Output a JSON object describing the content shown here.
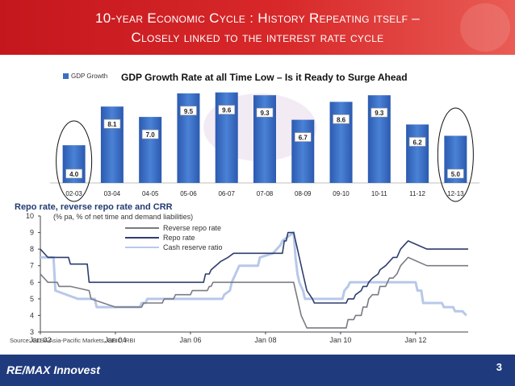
{
  "header": {
    "line1": "10-year Economic Cycle : History Repeating itself –",
    "line2": "Closely linked to the interest rate cycle"
  },
  "footer": {
    "brand": "RE/MAX Innovest",
    "page": "3"
  },
  "colors": {
    "header_red": "#d8282a",
    "footer_blue": "#1f3b7e",
    "bar_blue": "#3a6fc4",
    "reverse_repo": "#7a7a84",
    "repo": "#2e3c6e",
    "crr": "#b7c8ea"
  },
  "chart_data": [
    {
      "type": "bar",
      "title": "GDP Growth Rate at all Time Low – Is it Ready to Surge Ahead",
      "legend": "GDP Growth",
      "legend_position": "top-left",
      "categories": [
        "02-03",
        "03-04",
        "04-05",
        "05-06",
        "06-07",
        "07-08",
        "08-09",
        "09-10",
        "10-11",
        "11-12",
        "12-13"
      ],
      "values": [
        4.0,
        8.1,
        7.0,
        9.5,
        9.6,
        9.3,
        6.7,
        8.6,
        9.3,
        6.2,
        5.0
      ],
      "labels": [
        "4.0",
        "8.1",
        "7.0",
        "9.5",
        "9.6",
        "9.3",
        "6.7",
        "8.6",
        "9.3",
        "6.2",
        "5.0"
      ],
      "ylim": [
        0,
        10
      ],
      "highlighted_categories": [
        "02-03",
        "12-13"
      ]
    },
    {
      "type": "line",
      "title": "Repo rate, reverse repo rate and CRR",
      "subtitle": "(% pa, % of net time and demand liabilities)",
      "source": "Source: CLSA Asia-Pacific Markets, CEIC, RBI",
      "x_ticks": [
        "Jan 02",
        "Jan 04",
        "Jan 06",
        "Jan 08",
        "Jan 10",
        "Jan 12"
      ],
      "x_tick_values": [
        2002,
        2004,
        2006,
        2008,
        2010,
        2012
      ],
      "xlim": [
        2002,
        2013.4
      ],
      "y_ticks": [
        3,
        4,
        5,
        6,
        7,
        8,
        9,
        10
      ],
      "ylim": [
        3,
        10
      ],
      "grid": false,
      "series": [
        {
          "name": "Reverse repo rate",
          "x": [
            2002.0,
            2002.2,
            2002.45,
            2002.5,
            2002.8,
            2003.3,
            2003.35,
            2004.0,
            2004.7,
            2004.75,
            2005.25,
            2005.3,
            2005.55,
            2005.6,
            2006.0,
            2006.05,
            2006.45,
            2006.5,
            2006.55,
            2006.6,
            2008.5,
            2008.75,
            2008.85,
            2008.95,
            2009.05,
            2009.1,
            2009.25,
            2009.3,
            2010.15,
            2010.2,
            2010.35,
            2010.4,
            2010.55,
            2010.6,
            2010.7,
            2010.75,
            2010.85,
            2011.0,
            2011.05,
            2011.2,
            2011.3,
            2011.4,
            2011.5,
            2011.6,
            2011.8,
            2012.3,
            2013.4
          ],
          "y": [
            6.5,
            6.0,
            6.0,
            5.75,
            5.75,
            5.5,
            5.0,
            4.5,
            4.5,
            4.75,
            4.75,
            5.0,
            5.0,
            5.25,
            5.25,
            5.5,
            5.5,
            5.75,
            5.75,
            6.0,
            6.0,
            6.0,
            5.0,
            4.0,
            3.5,
            3.25,
            3.25,
            3.25,
            3.25,
            3.75,
            3.75,
            4.0,
            4.0,
            4.5,
            4.5,
            5.0,
            5.25,
            5.25,
            5.75,
            5.75,
            6.25,
            6.25,
            6.5,
            7.0,
            7.5,
            7.0,
            7.0
          ]
        },
        {
          "name": "Repo rate",
          "x": [
            2002.0,
            2002.2,
            2002.75,
            2002.8,
            2003.25,
            2003.3,
            2006.35,
            2006.4,
            2006.5,
            2006.55,
            2006.8,
            2007.0,
            2007.15,
            2008.45,
            2008.5,
            2008.55,
            2008.6,
            2008.75,
            2008.85,
            2008.9,
            2009.0,
            2009.1,
            2009.25,
            2009.3,
            2010.15,
            2010.2,
            2010.35,
            2010.4,
            2010.55,
            2010.6,
            2010.7,
            2010.75,
            2010.85,
            2011.0,
            2011.05,
            2011.2,
            2011.3,
            2011.4,
            2011.5,
            2011.6,
            2011.8,
            2012.3,
            2013.4
          ],
          "y": [
            8.0,
            7.5,
            7.5,
            7.1,
            7.1,
            6.0,
            6.0,
            6.5,
            6.5,
            6.75,
            7.25,
            7.5,
            7.75,
            7.75,
            8.5,
            8.5,
            9.0,
            9.0,
            8.0,
            7.5,
            6.5,
            5.5,
            5.0,
            4.75,
            4.75,
            5.0,
            5.0,
            5.25,
            5.5,
            5.75,
            5.75,
            6.0,
            6.25,
            6.5,
            6.75,
            7.0,
            7.25,
            7.5,
            7.5,
            8.0,
            8.5,
            8.0,
            8.0
          ]
        },
        {
          "name": "Cash reserve ratio",
          "x": [
            2002.0,
            2002.35,
            2002.4,
            2003.0,
            2003.45,
            2003.5,
            2004.65,
            2004.7,
            2004.8,
            2004.85,
            2006.85,
            2006.9,
            2007.05,
            2007.1,
            2007.2,
            2007.3,
            2007.8,
            2007.85,
            2008.2,
            2008.3,
            2008.4,
            2008.45,
            2008.6,
            2008.75,
            2008.8,
            2008.85,
            2008.9,
            2009.0,
            2009.05,
            2010.05,
            2010.1,
            2010.2,
            2010.25,
            2012.0,
            2012.05,
            2012.15,
            2012.2,
            2012.7,
            2012.75,
            2013.0,
            2013.05,
            2013.25,
            2013.35
          ],
          "y": [
            7.5,
            7.5,
            5.5,
            5.0,
            5.0,
            4.5,
            4.5,
            4.75,
            4.75,
            5.0,
            5.0,
            5.25,
            5.5,
            6.0,
            6.5,
            7.0,
            7.0,
            7.5,
            7.75,
            8.0,
            8.25,
            8.5,
            8.75,
            9.0,
            7.5,
            6.5,
            6.0,
            5.5,
            5.0,
            5.0,
            5.5,
            5.75,
            6.0,
            6.0,
            5.5,
            5.5,
            4.75,
            4.75,
            4.5,
            4.5,
            4.25,
            4.25,
            4.0
          ]
        }
      ]
    }
  ]
}
